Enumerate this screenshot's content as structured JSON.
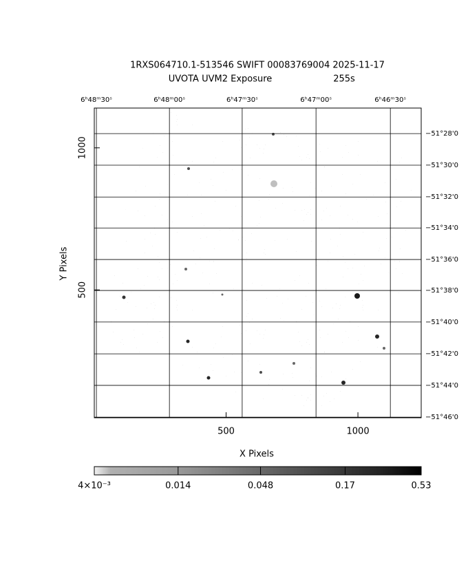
{
  "chart_data": {
    "type": "image",
    "title": "1RXS064710.1-513546 SWIFT 00083769004 2025-11-17",
    "subtitle": "UVOTA UVM2 Exposure",
    "exposure": "255s",
    "x_label": "X Pixels",
    "y_label": "Y Pixels",
    "xlim": [
      0,
      1240
    ],
    "ylim": [
      50,
      1140
    ],
    "xticks": [
      500,
      1000
    ],
    "yticks": [
      500,
      1000
    ],
    "top_ticks": [
      {
        "value": 8,
        "label": "6ʰ48ᵐ30ˢ"
      },
      {
        "value": 285,
        "label": "6ʰ48ᵐ00ˢ"
      },
      {
        "value": 561,
        "label": "6ʰ47ᵐ30ˢ"
      },
      {
        "value": 841,
        "label": "6ʰ47ᵐ00ˢ"
      },
      {
        "value": 1123,
        "label": "6ʰ46ᵐ30ˢ"
      }
    ],
    "right_ticks": [
      {
        "value": 1050,
        "label": "−51°28'0"
      },
      {
        "value": 939,
        "label": "−51°30'0"
      },
      {
        "value": 827,
        "label": "−51°32'0"
      },
      {
        "value": 718,
        "label": "−51°34'0"
      },
      {
        "value": 607,
        "label": "−51°36'0"
      },
      {
        "value": 498,
        "label": "−51°38'0"
      },
      {
        "value": 387,
        "label": "−51°40'0"
      },
      {
        "value": 275,
        "label": "−51°42'0"
      },
      {
        "value": 164,
        "label": "−51°44'0"
      },
      {
        "value": 52,
        "label": "−51°46'0"
      }
    ],
    "grid": true,
    "colorbar": {
      "scale": "log",
      "lim": [
        0.004,
        0.53
      ],
      "ticks": [
        {
          "value": 0.004,
          "label": "4×10⁻³"
        },
        0.014,
        0.048,
        0.17,
        0.53
      ]
    }
  }
}
